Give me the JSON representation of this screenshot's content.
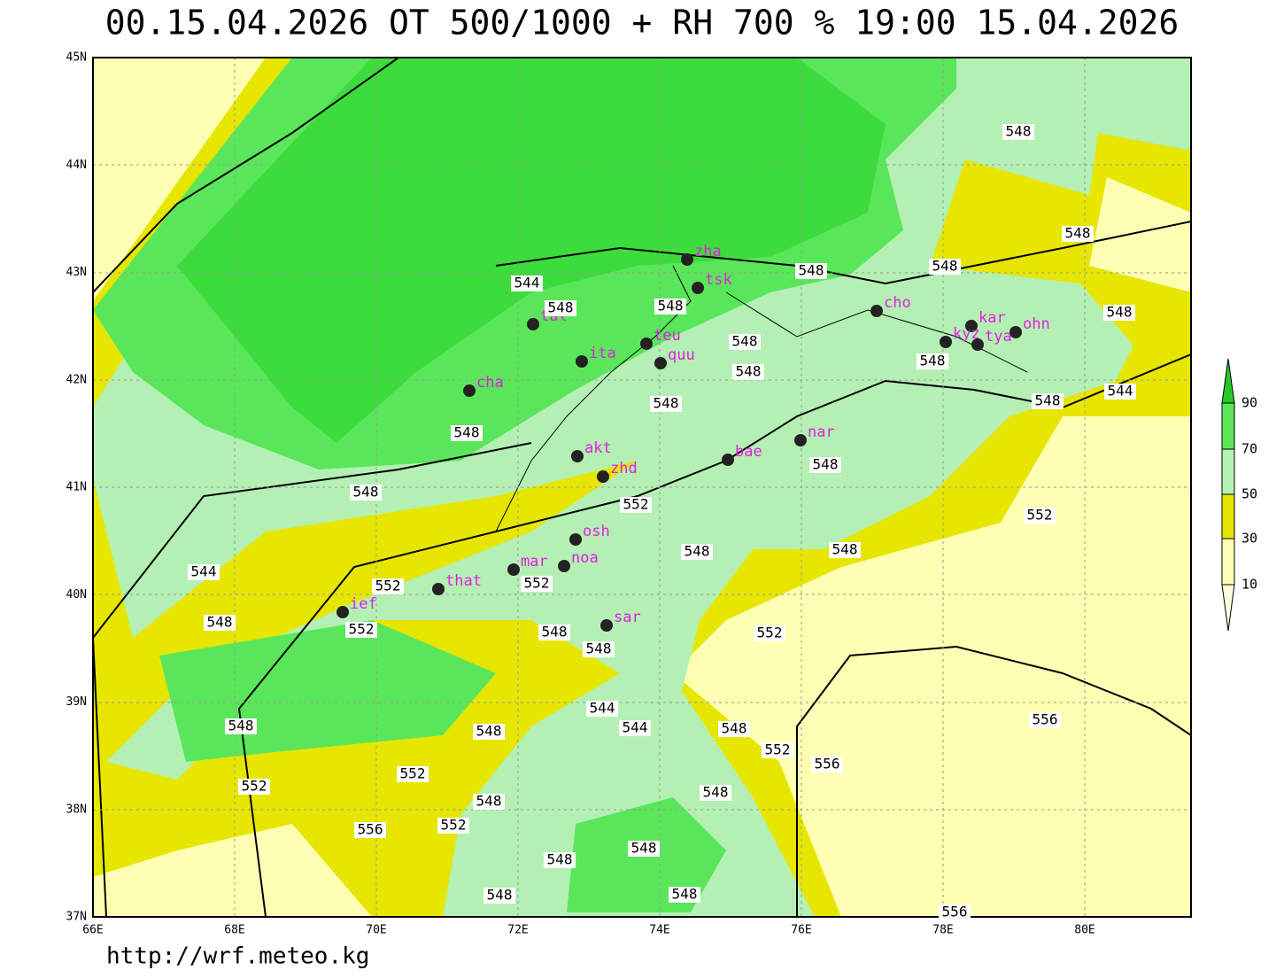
{
  "header": {
    "title": "00.15.04.2026 OT 500/1000 + RH 700 % 19:00 15.04.2026"
  },
  "axes": {
    "lat_labels": [
      "45N",
      "44N",
      "43N",
      "42N",
      "41N",
      "40N",
      "39N",
      "38N",
      "37N"
    ],
    "lon_labels": [
      "66E",
      "68E",
      "70E",
      "72E",
      "74E",
      "76E",
      "78E",
      "80E"
    ]
  },
  "colorbar": {
    "labels": [
      90,
      70,
      50,
      30,
      10
    ]
  },
  "stations": [
    "zha",
    "tsk",
    "cho",
    "tal",
    "kar",
    "ohn",
    "kyz",
    "tya",
    "teu",
    "ita",
    "quu",
    "cha",
    "nar",
    "akt",
    "bae",
    "zhd",
    "osh",
    "mar",
    "noa",
    "that",
    "ief",
    "sar"
  ],
  "contour_labels": [
    544,
    548,
    548,
    548,
    548,
    548,
    548,
    548,
    548,
    548,
    548,
    548,
    548,
    548,
    544,
    548,
    548,
    552,
    552,
    544,
    548,
    548,
    552,
    552,
    548,
    552,
    548,
    552,
    548,
    544,
    544,
    548,
    548,
    548,
    552,
    556,
    556,
    552,
    552,
    548,
    548,
    556,
    552,
    548,
    548,
    548,
    548,
    556
  ],
  "footer": {
    "url": "http://wrf.meteo.kg"
  }
}
